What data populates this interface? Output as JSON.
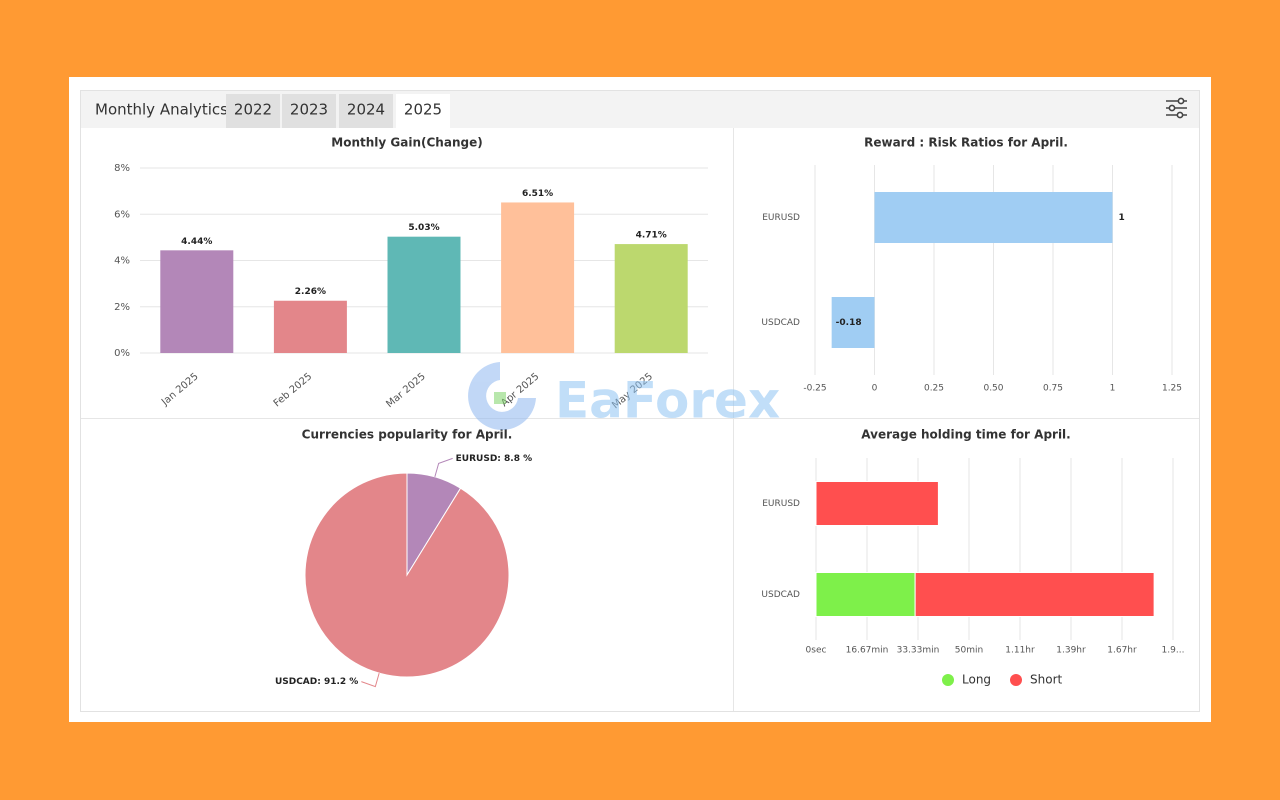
{
  "header": {
    "title": "Monthly Analytics",
    "tabs": [
      "2022",
      "2023",
      "2024",
      "2025"
    ],
    "active_tab": 3
  },
  "watermark": "EaForex",
  "chart_data": [
    {
      "type": "bar",
      "title": "Monthly Gain(Change)",
      "categories": [
        "Jan 2025",
        "Feb 2025",
        "Mar 2025",
        "Apr 2025",
        "May 2025"
      ],
      "values": [
        4.44,
        2.26,
        5.03,
        6.51,
        4.71
      ],
      "value_labels": [
        "4.44%",
        "2.26%",
        "5.03%",
        "6.51%",
        "4.71%"
      ],
      "colors": [
        "#b387b8",
        "#e3868a",
        "#5fb8b5",
        "#ffc09a",
        "#bcd86e"
      ],
      "ylim": [
        0,
        8
      ],
      "yticks": [
        {
          "value": 0,
          "label": "0%"
        },
        {
          "value": 2,
          "label": "2%"
        },
        {
          "value": 4,
          "label": "4%"
        },
        {
          "value": 6,
          "label": "6%"
        },
        {
          "value": 8,
          "label": "8%"
        }
      ],
      "grid": true
    },
    {
      "type": "bar",
      "orientation": "horizontal",
      "title": "Reward : Risk Ratios for April.",
      "categories": [
        "EURUSD",
        "USDCAD"
      ],
      "values": [
        1,
        -0.18
      ],
      "color": "#a0cdf3",
      "xlim": [
        -0.25,
        1.25
      ],
      "xticks": [
        -0.25,
        0,
        0.25,
        {
          "value": 0.5,
          "label": "0.50"
        },
        0.75,
        1,
        1.25
      ],
      "grid": true
    },
    {
      "type": "pie",
      "title": "Currencies popularity for April.",
      "categories": [
        "EURUSD",
        "USDCAD"
      ],
      "values": [
        8.8,
        91.2
      ],
      "value_labels": [
        "EURUSD: 8.8 %",
        "USDCAD: 91.2 %"
      ],
      "colors": [
        "#b387b8",
        "#e3868a"
      ]
    },
    {
      "type": "bar",
      "orientation": "horizontal",
      "stacked": true,
      "title": "Average holding time for April.",
      "categories": [
        "EURUSD",
        "USDCAD"
      ],
      "series": [
        {
          "name": "Long",
          "color": "#7ef04a",
          "values": [
            0,
            32.4
          ]
        },
        {
          "name": "Short",
          "color": "#ff4f4f",
          "values": [
            40,
            78.1
          ]
        }
      ],
      "xlim": [
        0,
        116.67
      ],
      "xticks": [
        {
          "value": 0,
          "label": "0sec"
        },
        {
          "value": 16.67,
          "label": "16.67min"
        },
        {
          "value": 33.33,
          "label": "33.33min"
        },
        {
          "value": 50,
          "label": "50min"
        },
        {
          "value": 66.67,
          "label": "1.11hr"
        },
        {
          "value": 83.33,
          "label": "1.39hr"
        },
        {
          "value": 100,
          "label": "1.67hr"
        },
        {
          "value": 116.67,
          "label": "1.9..."
        }
      ],
      "grid": true,
      "legend": "bottom"
    }
  ]
}
